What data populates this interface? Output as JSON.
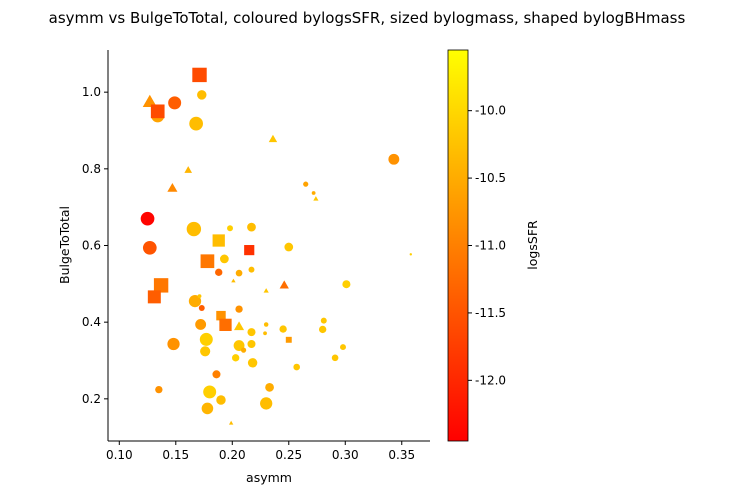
{
  "chart_data": {
    "type": "scatter",
    "title": "asymm vs BulgeToTotal, coloured bylogsSFR, sized bylogmass, shaped bylogBHmass",
    "xlabel": "asymm",
    "ylabel": "BulgeToTotal",
    "xlim": [
      0.09,
      0.375
    ],
    "ylim": [
      0.09,
      1.11
    ],
    "xticks": [
      "0.10",
      "0.15",
      "0.20",
      "0.25",
      "0.30",
      "0.35"
    ],
    "yticks": [
      "0.2",
      "0.4",
      "0.6",
      "0.8",
      "1.0"
    ],
    "grid": false,
    "colorbar": {
      "label": "logsSFR",
      "range": [
        -12.45,
        -9.55
      ],
      "ticks": [
        "-12.0",
        "-11.5",
        "-11.0",
        "-10.5",
        "-10.0"
      ],
      "colormap": [
        "#ff0000",
        "#ff8000",
        "#ffff00"
      ]
    },
    "points": [
      {
        "x": 0.171,
        "y": 1.045,
        "c": -11.6,
        "s": 10.9,
        "m": "square"
      },
      {
        "x": 0.127,
        "y": 0.975,
        "c": -10.8,
        "s": 10.6,
        "m": "triangle"
      },
      {
        "x": 0.149,
        "y": 0.972,
        "c": -11.4,
        "s": 10.7,
        "m": "circle"
      },
      {
        "x": 0.173,
        "y": 0.993,
        "c": -10.3,
        "s": 10.2,
        "m": "circle"
      },
      {
        "x": 0.134,
        "y": 0.938,
        "c": -10.6,
        "s": 10.7,
        "m": "circle"
      },
      {
        "x": 0.134,
        "y": 0.95,
        "c": -11.6,
        "s": 10.8,
        "m": "square"
      },
      {
        "x": 0.168,
        "y": 0.918,
        "c": -10.3,
        "s": 10.8,
        "m": "circle"
      },
      {
        "x": 0.236,
        "y": 0.878,
        "c": -10.2,
        "s": 9.9,
        "m": "triangle"
      },
      {
        "x": 0.343,
        "y": 0.825,
        "c": -10.8,
        "s": 10.4,
        "m": "circle"
      },
      {
        "x": 0.161,
        "y": 0.797,
        "c": -10.4,
        "s": 9.8,
        "m": "triangle"
      },
      {
        "x": 0.265,
        "y": 0.76,
        "c": -10.6,
        "s": 9.6,
        "m": "circle"
      },
      {
        "x": 0.147,
        "y": 0.75,
        "c": -10.9,
        "s": 10.1,
        "m": "triangle"
      },
      {
        "x": 0.272,
        "y": 0.737,
        "c": -10.5,
        "s": 9.4,
        "m": "circle"
      },
      {
        "x": 0.274,
        "y": 0.722,
        "c": -10.2,
        "s": 9.5,
        "m": "triangle"
      },
      {
        "x": 0.125,
        "y": 0.67,
        "c": -12.4,
        "s": 10.8,
        "m": "circle"
      },
      {
        "x": 0.217,
        "y": 0.648,
        "c": -10.3,
        "s": 10.1,
        "m": "circle"
      },
      {
        "x": 0.166,
        "y": 0.643,
        "c": -10.3,
        "s": 10.9,
        "m": "circle"
      },
      {
        "x": 0.198,
        "y": 0.645,
        "c": -10.1,
        "s": 9.7,
        "m": "circle"
      },
      {
        "x": 0.188,
        "y": 0.613,
        "c": -10.3,
        "s": 10.6,
        "m": "square"
      },
      {
        "x": 0.127,
        "y": 0.594,
        "c": -11.5,
        "s": 10.8,
        "m": "circle"
      },
      {
        "x": 0.25,
        "y": 0.596,
        "c": -10.2,
        "s": 10.1,
        "m": "circle"
      },
      {
        "x": 0.215,
        "y": 0.588,
        "c": -11.9,
        "s": 10.3,
        "m": "square"
      },
      {
        "x": 0.358,
        "y": 0.577,
        "c": -10.1,
        "s": 9.2,
        "m": "circle"
      },
      {
        "x": 0.193,
        "y": 0.565,
        "c": -10.2,
        "s": 10.1,
        "m": "circle"
      },
      {
        "x": 0.178,
        "y": 0.559,
        "c": -11.1,
        "s": 10.8,
        "m": "square"
      },
      {
        "x": 0.217,
        "y": 0.537,
        "c": -10.3,
        "s": 9.7,
        "m": "circle"
      },
      {
        "x": 0.188,
        "y": 0.53,
        "c": -11.3,
        "s": 9.9,
        "m": "circle"
      },
      {
        "x": 0.206,
        "y": 0.528,
        "c": -10.5,
        "s": 9.8,
        "m": "circle"
      },
      {
        "x": 0.201,
        "y": 0.508,
        "c": -10.3,
        "s": 9.4,
        "m": "triangle"
      },
      {
        "x": 0.137,
        "y": 0.496,
        "c": -11.1,
        "s": 10.9,
        "m": "square"
      },
      {
        "x": 0.246,
        "y": 0.497,
        "c": -11.2,
        "s": 10.0,
        "m": "triangle"
      },
      {
        "x": 0.301,
        "y": 0.499,
        "c": -10.1,
        "s": 10.0,
        "m": "circle"
      },
      {
        "x": 0.23,
        "y": 0.482,
        "c": -10.2,
        "s": 9.5,
        "m": "triangle"
      },
      {
        "x": 0.131,
        "y": 0.466,
        "c": -11.4,
        "s": 10.7,
        "m": "square"
      },
      {
        "x": 0.167,
        "y": 0.455,
        "c": -10.5,
        "s": 10.6,
        "m": "circle"
      },
      {
        "x": 0.171,
        "y": 0.468,
        "c": -10.2,
        "s": 9.4,
        "m": "circle"
      },
      {
        "x": 0.173,
        "y": 0.437,
        "c": -11.4,
        "s": 9.7,
        "m": "circle"
      },
      {
        "x": 0.206,
        "y": 0.434,
        "c": -10.8,
        "s": 9.9,
        "m": "circle"
      },
      {
        "x": 0.19,
        "y": 0.417,
        "c": -10.8,
        "s": 10.2,
        "m": "square"
      },
      {
        "x": 0.281,
        "y": 0.404,
        "c": -10.2,
        "s": 9.7,
        "m": "circle"
      },
      {
        "x": 0.172,
        "y": 0.394,
        "c": -10.7,
        "s": 10.4,
        "m": "circle"
      },
      {
        "x": 0.194,
        "y": 0.393,
        "c": -11.2,
        "s": 10.6,
        "m": "square"
      },
      {
        "x": 0.206,
        "y": 0.389,
        "c": -10.2,
        "s": 10.1,
        "m": "triangle"
      },
      {
        "x": 0.23,
        "y": 0.394,
        "c": -10.3,
        "s": 9.5,
        "m": "circle"
      },
      {
        "x": 0.245,
        "y": 0.382,
        "c": -10.2,
        "s": 9.9,
        "m": "circle"
      },
      {
        "x": 0.28,
        "y": 0.381,
        "c": -10.2,
        "s": 9.9,
        "m": "circle"
      },
      {
        "x": 0.217,
        "y": 0.374,
        "c": -10.2,
        "s": 10.0,
        "m": "circle"
      },
      {
        "x": 0.229,
        "y": 0.371,
        "c": -10.3,
        "s": 9.4,
        "m": "circle"
      },
      {
        "x": 0.177,
        "y": 0.355,
        "c": -10.1,
        "s": 10.7,
        "m": "circle"
      },
      {
        "x": 0.25,
        "y": 0.354,
        "c": -10.7,
        "s": 9.7,
        "m": "square"
      },
      {
        "x": 0.148,
        "y": 0.343,
        "c": -10.8,
        "s": 10.6,
        "m": "circle"
      },
      {
        "x": 0.217,
        "y": 0.343,
        "c": -10.2,
        "s": 10.0,
        "m": "circle"
      },
      {
        "x": 0.298,
        "y": 0.335,
        "c": -10.2,
        "s": 9.7,
        "m": "circle"
      },
      {
        "x": 0.206,
        "y": 0.339,
        "c": -10.2,
        "s": 10.4,
        "m": "circle"
      },
      {
        "x": 0.21,
        "y": 0.327,
        "c": -10.5,
        "s": 9.6,
        "m": "circle"
      },
      {
        "x": 0.176,
        "y": 0.324,
        "c": -10.2,
        "s": 10.3,
        "m": "circle"
      },
      {
        "x": 0.203,
        "y": 0.307,
        "c": -10.1,
        "s": 9.9,
        "m": "circle"
      },
      {
        "x": 0.291,
        "y": 0.307,
        "c": -10.2,
        "s": 9.8,
        "m": "circle"
      },
      {
        "x": 0.218,
        "y": 0.294,
        "c": -10.2,
        "s": 10.2,
        "m": "circle"
      },
      {
        "x": 0.257,
        "y": 0.283,
        "c": -10.2,
        "s": 9.8,
        "m": "circle"
      },
      {
        "x": 0.186,
        "y": 0.264,
        "c": -11.0,
        "s": 10.0,
        "m": "circle"
      },
      {
        "x": 0.233,
        "y": 0.23,
        "c": -10.5,
        "s": 10.1,
        "m": "circle"
      },
      {
        "x": 0.135,
        "y": 0.224,
        "c": -10.8,
        "s": 9.9,
        "m": "circle"
      },
      {
        "x": 0.18,
        "y": 0.218,
        "c": -10.1,
        "s": 10.7,
        "m": "circle"
      },
      {
        "x": 0.19,
        "y": 0.197,
        "c": -10.3,
        "s": 10.2,
        "m": "circle"
      },
      {
        "x": 0.23,
        "y": 0.188,
        "c": -10.3,
        "s": 10.6,
        "m": "circle"
      },
      {
        "x": 0.178,
        "y": 0.175,
        "c": -10.4,
        "s": 10.5,
        "m": "circle"
      },
      {
        "x": 0.199,
        "y": 0.137,
        "c": -10.3,
        "s": 9.4,
        "m": "triangle"
      }
    ]
  }
}
